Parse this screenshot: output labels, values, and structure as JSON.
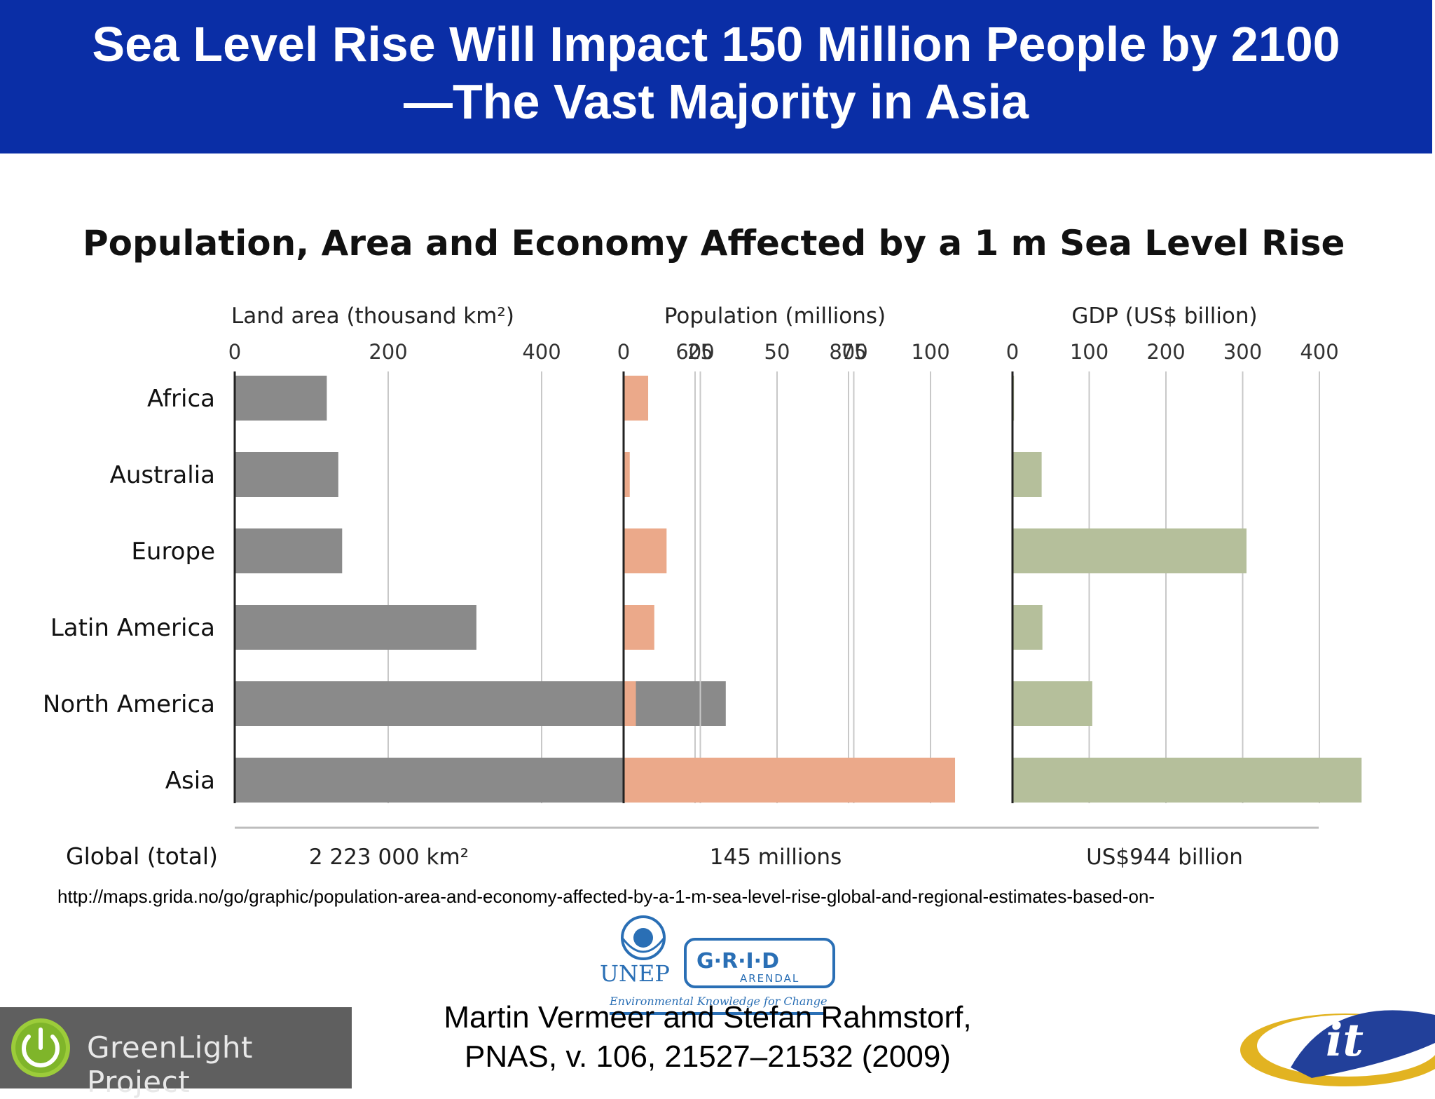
{
  "banner": {
    "title_line1": "Sea Level Rise Will Impact 150 Million People by 2100",
    "title_line2": "—The Vast Majority in Asia",
    "color": "#0a2ea6"
  },
  "chart_data": {
    "type": "bar",
    "title": "Population, Area and Economy Affected by a 1 m Sea Level Rise",
    "orientation": "horizontal",
    "categories": [
      "Africa",
      "Australia",
      "Europe",
      "Latin America",
      "North America",
      "Asia"
    ],
    "total_label": "Global (total)",
    "panels": [
      {
        "name": "Land area (thousand km²)",
        "color": "#8a8a8a",
        "xlim": [
          0,
          900
        ],
        "ticks": [
          0,
          200,
          400,
          600,
          800
        ],
        "values": [
          120,
          135,
          140,
          315,
          640,
          875
        ],
        "total": "2 223 000 km²"
      },
      {
        "name": "Population (millions)",
        "color": "#eba98a",
        "xlim": [
          0,
          112
        ],
        "ticks": [
          0,
          25,
          50,
          75,
          100
        ],
        "values": [
          8,
          2,
          14,
          10,
          4,
          108
        ],
        "total": "145 millions"
      },
      {
        "name": "GDP (US$ billion)",
        "color": "#b5bf9b",
        "xlim": [
          0,
          455
        ],
        "ticks": [
          0,
          100,
          200,
          300,
          400
        ],
        "values": [
          2,
          38,
          305,
          39,
          104,
          455
        ],
        "total": "US$944 billion"
      }
    ]
  },
  "source": {
    "url": "http://maps.grida.no/go/graphic/population-area-and-economy-affected-by-a-1-m-sea-level-rise-global-and-regional-estimates-based-on-"
  },
  "citation": {
    "line1": "Martin Vermeer and Stefan Rahmstorf,",
    "line2": "PNAS, v. 106, 21527–21532 (2009)"
  },
  "logos": {
    "unep": "UNEP",
    "grid": "G·R·I·D",
    "arendal": "ARENDAL",
    "tagline": "Environmental Knowledge for Change",
    "greenlight": "GreenLight Project",
    "it2": "it"
  }
}
